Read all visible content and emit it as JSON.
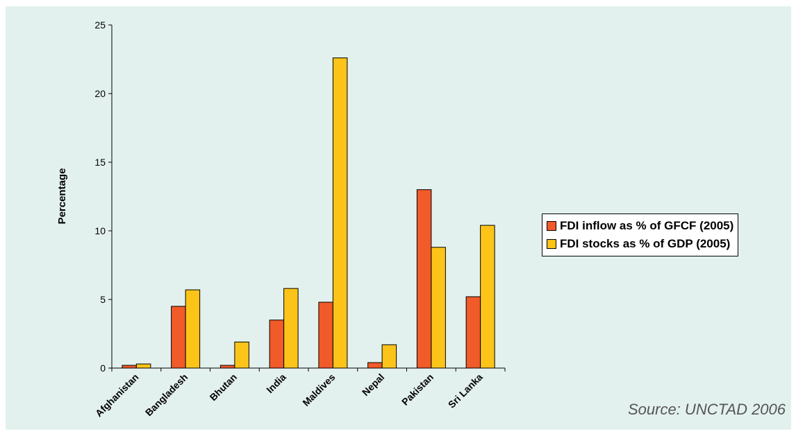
{
  "chart_data": {
    "type": "bar",
    "categories": [
      "Afghanistan",
      "Bangladesh",
      "Bhutan",
      "India",
      "Maldives",
      "Nepal",
      "Pakistan",
      "Sri Lanka"
    ],
    "series": [
      {
        "name": "FDI inflow as % of GFCF (2005)",
        "values": [
          0.2,
          4.5,
          0.2,
          3.5,
          4.8,
          0.4,
          13.0,
          5.2
        ],
        "color": "#f15a29"
      },
      {
        "name": "FDI stocks as % of GDP (2005)",
        "values": [
          0.3,
          5.7,
          1.9,
          5.8,
          22.6,
          1.7,
          8.8,
          10.4
        ],
        "color": "#fcc419"
      }
    ],
    "title": "",
    "xlabel": "",
    "ylabel": "Percentage",
    "ylim": [
      0,
      25
    ],
    "yticks": [
      "0",
      "5",
      "10",
      "15",
      "20",
      "25"
    ],
    "legend_position": "right",
    "grid": false,
    "source": "Source: UNCTAD 2006"
  },
  "colors": {
    "background": "#e3f1ee",
    "axis": "#000000"
  }
}
